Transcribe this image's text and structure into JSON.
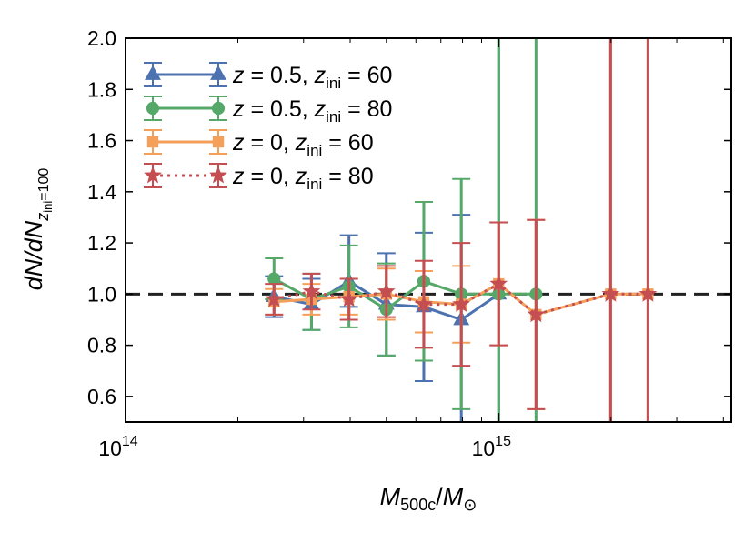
{
  "chart_data": {
    "type": "line",
    "title": "",
    "xscale": "log",
    "xlim": [
      100000000000000,
      4200000000000000
    ],
    "ylim": [
      0.5,
      2.0
    ],
    "xlabel": {
      "main": "M",
      "sub": "500c",
      "slash": "/",
      "main2": "M",
      "sub2": "⊙"
    },
    "ylabel": {
      "main": "dN/dN",
      "sub": "z",
      "subsub": "ini",
      "tail": "=100"
    },
    "x_major_ticks": [
      {
        "value": 100000000000000,
        "base": "10",
        "exp": "14"
      },
      {
        "value": 1000000000000000,
        "base": "10",
        "exp": "15"
      }
    ],
    "y_ticks": [
      {
        "value": 0.6,
        "label": "0.6"
      },
      {
        "value": 0.8,
        "label": "0.8"
      },
      {
        "value": 1.0,
        "label": "1.0"
      },
      {
        "value": 1.2,
        "label": "1.2"
      },
      {
        "value": 1.4,
        "label": "1.4"
      },
      {
        "value": 1.6,
        "label": "1.6"
      },
      {
        "value": 1.8,
        "label": "1.8"
      },
      {
        "value": 2.0,
        "label": "2.0"
      }
    ],
    "reference_line": {
      "y": 1.0,
      "style": "dashed",
      "color": "#222222"
    },
    "legend": {
      "placement": "top-left"
    },
    "series": [
      {
        "name": "z = 0.5, z_ini = 60",
        "label": {
          "z": "z",
          "zval": " = 0.5, ",
          "zi": "z",
          "zisub": "ini",
          "zival": " = 60"
        },
        "color": "#4c72b0",
        "marker": "triangle",
        "linestyle": "solid",
        "x": [
          250000000000000,
          315000000000000,
          397000000000000,
          500000000000000,
          630000000000000,
          794000000000000,
          1000000000000000
        ],
        "y": [
          0.99,
          0.96,
          1.05,
          0.96,
          0.95,
          0.9,
          1.0
        ],
        "err_lo": [
          0.08,
          0.1,
          0.1,
          0.2,
          0.29,
          0.5,
          0.5
        ],
        "err_hi": [
          0.08,
          0.1,
          0.18,
          0.2,
          0.29,
          0.41,
          1.0
        ]
      },
      {
        "name": "z = 0.5, z_ini = 80",
        "label": {
          "z": "z",
          "zval": " = 0.5, ",
          "zi": "z",
          "zisub": "ini",
          "zival": " = 80"
        },
        "color": "#55a868",
        "marker": "circle",
        "linestyle": "solid",
        "x": [
          250000000000000,
          315000000000000,
          397000000000000,
          500000000000000,
          630000000000000,
          794000000000000,
          1000000000000000,
          1259000000000000
        ],
        "y": [
          1.06,
          0.98,
          1.03,
          0.94,
          1.05,
          1.0,
          1.0,
          1.0
        ],
        "err_lo": [
          0.08,
          0.12,
          0.16,
          0.18,
          0.31,
          0.45,
          0.6,
          0.6
        ],
        "err_hi": [
          0.08,
          0.1,
          0.16,
          0.18,
          0.31,
          0.45,
          1.0,
          1.0
        ]
      },
      {
        "name": "z = 0, z_ini = 60",
        "label": {
          "z": "z",
          "zval": " = 0, ",
          "zi": "z",
          "zisub": "ini",
          "zival": " = 60"
        },
        "color": "#f5a05a",
        "marker": "square",
        "linestyle": "solid",
        "x": [
          250000000000000,
          315000000000000,
          397000000000000,
          500000000000000,
          630000000000000,
          794000000000000,
          1000000000000000,
          1259000000000000,
          1995000000000000,
          2512000000000000
        ],
        "y": [
          0.97,
          0.98,
          0.99,
          1.0,
          0.97,
          0.96,
          1.04,
          0.92,
          1.0,
          1.0
        ],
        "err_lo": [
          0.05,
          0.06,
          0.07,
          0.1,
          0.12,
          0.15,
          0.24,
          0.37,
          0.5,
          0.5
        ],
        "err_hi": [
          0.05,
          0.06,
          0.07,
          0.1,
          0.12,
          0.15,
          0.24,
          0.37,
          1.0,
          1.0
        ]
      },
      {
        "name": "z = 0, z_ini = 80",
        "label": {
          "z": "z",
          "zval": " = 0, ",
          "zi": "z",
          "zisub": "ini",
          "zival": " = 80"
        },
        "color": "#c44e52",
        "marker": "star",
        "linestyle": "dotted",
        "x": [
          250000000000000,
          315000000000000,
          397000000000000,
          500000000000000,
          630000000000000,
          794000000000000,
          1000000000000000,
          1259000000000000,
          1995000000000000,
          2512000000000000
        ],
        "y": [
          0.98,
          1.01,
          0.98,
          1.01,
          0.96,
          0.96,
          1.04,
          0.92,
          1.0,
          1.0
        ],
        "err_lo": [
          0.06,
          0.07,
          0.08,
          0.1,
          0.17,
          0.24,
          0.24,
          0.37,
          0.5,
          0.5
        ],
        "err_hi": [
          0.06,
          0.07,
          0.08,
          0.1,
          0.17,
          0.24,
          0.24,
          0.37,
          1.0,
          1.0
        ]
      }
    ]
  }
}
